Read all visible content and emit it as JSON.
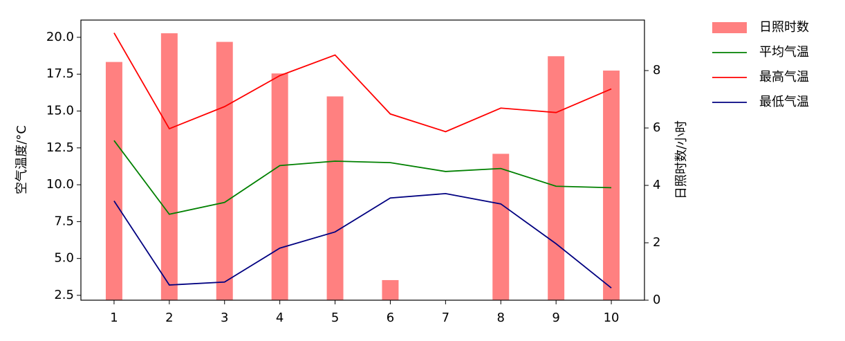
{
  "chart_data": {
    "type": "bar",
    "x": [
      1,
      2,
      3,
      4,
      5,
      6,
      7,
      8,
      9,
      10
    ],
    "xlim": [
      0.4,
      10.6
    ],
    "xticks": [
      1,
      2,
      3,
      4,
      5,
      6,
      7,
      8,
      9,
      10
    ],
    "y_label": "空气温度/°C",
    "y2_label": "日照时数/小时",
    "ylim": [
      2.17,
      21.17
    ],
    "yticks": [
      {
        "value": 2.5,
        "label": "2.5"
      },
      {
        "value": 5,
        "label": "5.0"
      },
      {
        "value": 7.5,
        "label": "7.5"
      },
      {
        "value": 10,
        "label": "10.0"
      },
      {
        "value": 12.5,
        "label": "12.5"
      },
      {
        "value": 15,
        "label": "15.0"
      },
      {
        "value": 17.5,
        "label": "17.5"
      },
      {
        "value": 20,
        "label": "20.0"
      }
    ],
    "y2lim": [
      0,
      9.76
    ],
    "y2ticks": [
      0,
      2,
      4,
      6,
      8
    ],
    "legend": "outside-upper-right",
    "series": [
      {
        "name": "日照时数",
        "type": "bar",
        "axis": "y2",
        "color": "#ff8080",
        "values": [
          8.3,
          9.3,
          9.0,
          7.9,
          7.1,
          0.7,
          0,
          5.1,
          8.5,
          8.0
        ]
      },
      {
        "name": "平均气温",
        "type": "line",
        "color": "#008000",
        "values": [
          13.0,
          8.0,
          8.8,
          11.3,
          11.6,
          11.5,
          10.9,
          11.1,
          9.9,
          9.8
        ]
      },
      {
        "name": "最高气温",
        "type": "line",
        "color": "#ff0000",
        "values": [
          20.3,
          13.8,
          15.3,
          17.4,
          18.8,
          14.8,
          13.6,
          15.2,
          14.9,
          16.5
        ]
      },
      {
        "name": "最低气温",
        "type": "line",
        "color": "#000080",
        "values": [
          8.9,
          3.2,
          3.4,
          5.7,
          6.8,
          9.1,
          9.4,
          8.7,
          6.0,
          3.0
        ]
      }
    ]
  }
}
